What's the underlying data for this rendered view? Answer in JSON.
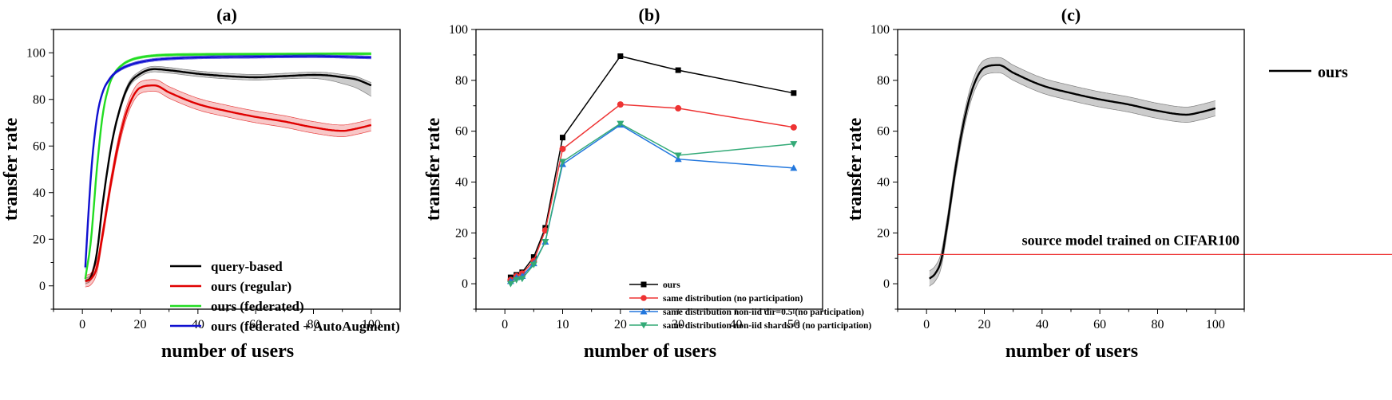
{
  "chart_data": [
    {
      "panel": "(a)",
      "type": "line",
      "title": "(a)",
      "xlabel": "number of users",
      "ylabel": "transfer rate",
      "xlim": [
        -10,
        110
      ],
      "ylim": [
        -10,
        110
      ],
      "xticks": [
        0,
        20,
        40,
        60,
        80,
        100
      ],
      "yticks": [
        0,
        20,
        40,
        60,
        80,
        100
      ],
      "grid": false,
      "legend_position": "bottom-right",
      "series": [
        {
          "name": "query-based",
          "color": "#000000",
          "band": 1.2,
          "x": [
            1,
            3,
            5,
            7,
            10,
            13,
            16,
            20,
            25,
            30,
            40,
            50,
            60,
            70,
            80,
            85,
            90,
            95,
            100
          ],
          "y": [
            2,
            4,
            14,
            35,
            60,
            76,
            86,
            91,
            93,
            92.5,
            91,
            90,
            89.5,
            90,
            90.5,
            90.3,
            89.5,
            88.5,
            86
          ],
          "band_hi_extra_end": [
            0,
            0,
            0,
            0,
            0,
            0,
            0,
            0,
            0,
            0,
            0,
            0,
            0,
            0,
            0.3,
            0.8,
            1.5,
            2.5,
            3.5
          ]
        },
        {
          "name": "ours (regular)",
          "color": "#e00000",
          "band": 2.5,
          "x": [
            1,
            3,
            5,
            7,
            10,
            13,
            16,
            20,
            25,
            30,
            40,
            50,
            60,
            70,
            80,
            90,
            95,
            100
          ],
          "y": [
            2,
            3,
            8,
            22,
            45,
            64,
            77,
            85,
            86,
            83,
            78,
            75,
            72.5,
            70.5,
            68,
            66.5,
            67.5,
            69
          ]
        },
        {
          "name": "ours (federated)",
          "color": "#22dd22",
          "band": 0.5,
          "x": [
            1,
            3,
            5,
            7,
            9,
            11,
            14,
            17,
            20,
            25,
            30,
            40,
            60,
            80,
            100
          ],
          "y": [
            3,
            20,
            50,
            73,
            85,
            91,
            95,
            97,
            98,
            98.8,
            99.1,
            99.3,
            99.4,
            99.5,
            99.6
          ]
        },
        {
          "name": "ours (federated + AutoAugment)",
          "color": "#1010d0",
          "band": 0.6,
          "x": [
            1,
            3,
            5,
            7,
            9,
            11,
            14,
            17,
            20,
            25,
            30,
            40,
            60,
            80,
            100
          ],
          "y": [
            8,
            48,
            72,
            83,
            88,
            91,
            93.5,
            95,
            96,
            97,
            97.5,
            98,
            98.3,
            98.5,
            98
          ]
        }
      ]
    },
    {
      "panel": "(b)",
      "type": "line",
      "title": "(b)",
      "xlabel": "number of users",
      "ylabel": "transfer rate",
      "xlim": [
        -5,
        55
      ],
      "ylim": [
        -10,
        100
      ],
      "xticks": [
        0,
        10,
        20,
        30,
        40,
        50
      ],
      "yticks": [
        0,
        20,
        40,
        60,
        80,
        100
      ],
      "grid": false,
      "legend_position": "bottom-right",
      "series": [
        {
          "name": "ours",
          "color": "#000000",
          "marker": "square",
          "x": [
            1,
            2,
            3,
            5,
            7,
            10,
            20,
            30,
            50
          ],
          "y": [
            2.5,
            3.5,
            4.5,
            10.5,
            22,
            57.5,
            89.5,
            84,
            75
          ]
        },
        {
          "name": "same distribution (no participation)",
          "color": "#ee3333",
          "marker": "circle",
          "x": [
            1,
            2,
            3,
            5,
            7,
            10,
            20,
            30,
            50
          ],
          "y": [
            1.5,
            3,
            4,
            9,
            21,
            53,
            70.5,
            69,
            61.5
          ]
        },
        {
          "name": "same distribution non-iid dir=0.5 (no participation)",
          "color": "#2277dd",
          "marker": "triangle-up",
          "x": [
            1,
            2,
            3,
            5,
            7,
            10,
            20,
            30,
            50
          ],
          "y": [
            1,
            2.5,
            3,
            8,
            16.5,
            47,
            62.5,
            49,
            45.5
          ]
        },
        {
          "name": "same distribution non-iid shards=5 (no participation)",
          "color": "#33aa77",
          "marker": "triangle-down",
          "x": [
            1,
            2,
            3,
            5,
            7,
            10,
            20,
            30,
            50
          ],
          "y": [
            0,
            1.5,
            2,
            7.5,
            16.5,
            48,
            63,
            50.5,
            55
          ]
        }
      ]
    },
    {
      "panel": "(c)",
      "type": "line",
      "title": "(c)",
      "xlabel": "number of users",
      "ylabel": "transfer rate",
      "xlim": [
        -10,
        110
      ],
      "ylim": [
        -10,
        100
      ],
      "xticks": [
        0,
        20,
        40,
        60,
        80,
        100
      ],
      "yticks": [
        0,
        20,
        40,
        60,
        80,
        100
      ],
      "grid": false,
      "legend_position": "top-right",
      "series": [
        {
          "name": "ours",
          "color": "#000000",
          "band": 3,
          "x": [
            1,
            3,
            5,
            7,
            10,
            13,
            16,
            20,
            25,
            30,
            40,
            50,
            60,
            70,
            80,
            90,
            95,
            100
          ],
          "y": [
            2,
            4,
            9,
            22,
            45,
            64,
            77,
            85,
            86,
            83,
            78,
            75,
            72.5,
            70.5,
            68,
            66.5,
            67.5,
            69
          ]
        }
      ],
      "reference_line": {
        "label": "source model trained on CIFAR100",
        "y": 11.5,
        "color": "#ee3333"
      }
    }
  ]
}
